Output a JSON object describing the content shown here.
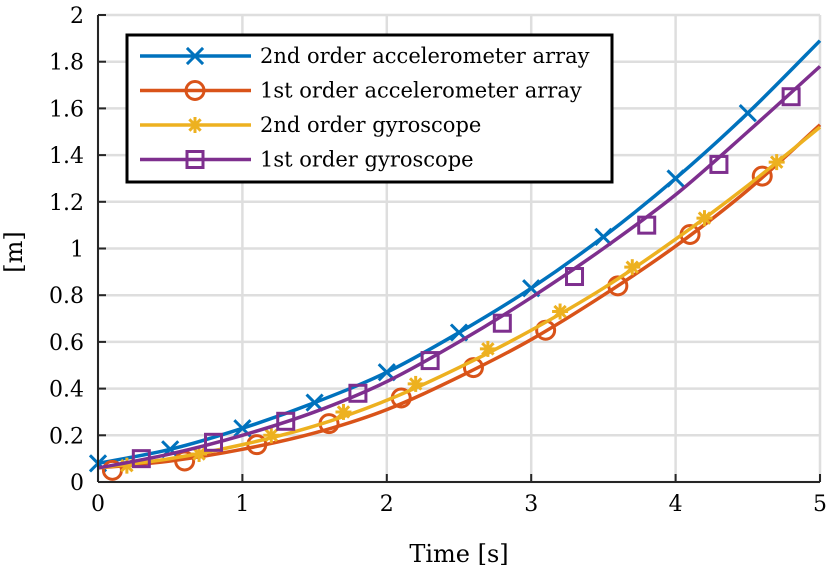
{
  "chart_data": {
    "type": "line",
    "title": "",
    "xlabel": "Time [s]",
    "ylabel": "[m]",
    "xlim": [
      0,
      5
    ],
    "ylim": [
      0,
      2
    ],
    "xticks": [
      0,
      1,
      2,
      3,
      4,
      5
    ],
    "yticks": [
      0,
      0.2,
      0.4,
      0.6,
      0.8,
      1,
      1.2,
      1.4,
      1.6,
      1.8,
      2
    ],
    "xtick_labels": [
      "0",
      "1",
      "2",
      "3",
      "4",
      "5"
    ],
    "ytick_labels": [
      "0",
      "0.2",
      "0.4",
      "0.6",
      "0.8",
      "1",
      "1.2",
      "1.4",
      "1.6",
      "1.8",
      "2"
    ],
    "grid": true,
    "legend_position": "top-left",
    "series": [
      {
        "name": "2nd order accelerometer array",
        "color": "#0072BD",
        "marker": "x",
        "x": [
          0,
          0.5,
          1,
          1.5,
          2,
          2.5,
          3,
          3.5,
          4,
          4.5,
          5
        ],
        "y": [
          0.08,
          0.14,
          0.23,
          0.34,
          0.47,
          0.64,
          0.83,
          1.05,
          1.3,
          1.58,
          1.89
        ],
        "marker_x": [
          0,
          0.5,
          1,
          1.5,
          2,
          2.5,
          3,
          3.5,
          4,
          4.5
        ],
        "marker_y": [
          0.08,
          0.14,
          0.23,
          0.34,
          0.47,
          0.64,
          0.83,
          1.05,
          1.3,
          1.58
        ]
      },
      {
        "name": "1st order accelerometer array",
        "color": "#D95319",
        "marker": "o",
        "x": [
          0,
          0.5,
          1,
          1.5,
          2,
          2.5,
          3,
          3.5,
          4,
          4.5,
          5
        ],
        "y": [
          0.06,
          0.09,
          0.14,
          0.21,
          0.31,
          0.45,
          0.61,
          0.8,
          1.01,
          1.25,
          1.53
        ],
        "marker_x": [
          0.1,
          0.6,
          1.1,
          1.6,
          2.1,
          2.6,
          3.1,
          3.6,
          4.1,
          4.6
        ],
        "marker_y": [
          0.05,
          0.09,
          0.16,
          0.25,
          0.36,
          0.49,
          0.65,
          0.84,
          1.06,
          1.31
        ]
      },
      {
        "name": "2nd order gyroscope",
        "color": "#EDB120",
        "marker": "*",
        "x": [
          0,
          0.5,
          1,
          1.5,
          2,
          2.5,
          3,
          3.5,
          4,
          4.5,
          5
        ],
        "y": [
          0.06,
          0.1,
          0.16,
          0.24,
          0.35,
          0.49,
          0.65,
          0.83,
          1.04,
          1.27,
          1.52
        ],
        "marker_x": [
          0.2,
          0.7,
          1.2,
          1.7,
          2.2,
          2.7,
          3.2,
          3.7,
          4.2,
          4.7
        ],
        "marker_y": [
          0.07,
          0.12,
          0.2,
          0.3,
          0.42,
          0.57,
          0.73,
          0.92,
          1.13,
          1.37
        ]
      },
      {
        "name": "1st order gyroscope",
        "color": "#7E2F8E",
        "marker": "s",
        "x": [
          0,
          0.5,
          1,
          1.5,
          2,
          2.5,
          3,
          3.5,
          4,
          4.5,
          5
        ],
        "y": [
          0.06,
          0.12,
          0.2,
          0.3,
          0.43,
          0.6,
          0.79,
          1.0,
          1.23,
          1.5,
          1.78
        ],
        "marker_x": [
          0.3,
          0.8,
          1.3,
          1.8,
          2.3,
          2.8,
          3.3,
          3.8,
          4.3,
          4.8
        ],
        "marker_y": [
          0.1,
          0.17,
          0.26,
          0.38,
          0.52,
          0.68,
          0.88,
          1.1,
          1.36,
          1.65
        ]
      }
    ]
  }
}
